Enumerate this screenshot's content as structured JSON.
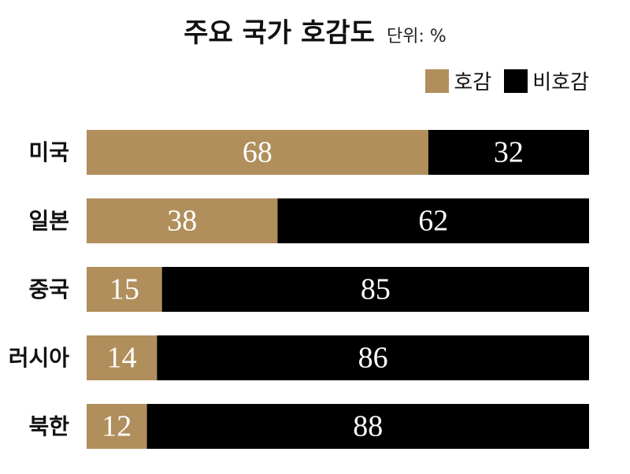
{
  "title": "주요 국가 호감도",
  "unit": "단위: %",
  "colors": {
    "favorable": "#b08f5c",
    "unfavorable": "#000000"
  },
  "chart_data": {
    "type": "bar",
    "orientation": "horizontal",
    "stacked": true,
    "categories": [
      "미국",
      "일본",
      "중국",
      "러시아",
      "북한"
    ],
    "series": [
      {
        "name": "호감",
        "values": [
          68,
          38,
          15,
          14,
          12
        ]
      },
      {
        "name": "비호감",
        "values": [
          32,
          62,
          85,
          86,
          88
        ]
      }
    ],
    "xlim": [
      0,
      100
    ],
    "grid": false,
    "legend": "top-right"
  }
}
